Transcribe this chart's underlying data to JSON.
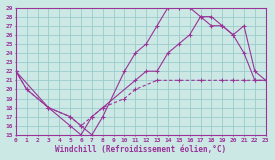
{
  "bg_color": "#cce8e4",
  "line_color": "#993399",
  "grid_color": "#99cccc",
  "xlabel": "Windchill (Refroidissement éolien,°C)",
  "xlim": [
    0,
    23
  ],
  "ylim": [
    15,
    29
  ],
  "line1_x": [
    0,
    1,
    3,
    5,
    6,
    7,
    8,
    10,
    11,
    12,
    13,
    14,
    15,
    16,
    17,
    18,
    19,
    20,
    21,
    22,
    23
  ],
  "line1_y": [
    22,
    20,
    18,
    17,
    16,
    15,
    17,
    22,
    24,
    25,
    27,
    29,
    29,
    29,
    28,
    28,
    27,
    26,
    24,
    21,
    21
  ],
  "line2_x": [
    0,
    3,
    5,
    6,
    7,
    8,
    11,
    12,
    13,
    14,
    15,
    16,
    17,
    18,
    19,
    20,
    21,
    22,
    23
  ],
  "line2_y": [
    22,
    18,
    16,
    15,
    17,
    18,
    21,
    22,
    22,
    24,
    25,
    26,
    28,
    27,
    27,
    26,
    27,
    22,
    21
  ],
  "line3_x": [
    0,
    1,
    3,
    5,
    6,
    7,
    8,
    10,
    11,
    13,
    15,
    17,
    19,
    20,
    21,
    22,
    23
  ],
  "line3_y": [
    22,
    20,
    18,
    17,
    16,
    17,
    18,
    19,
    20,
    21,
    21,
    21,
    21,
    21,
    21,
    21,
    21
  ]
}
